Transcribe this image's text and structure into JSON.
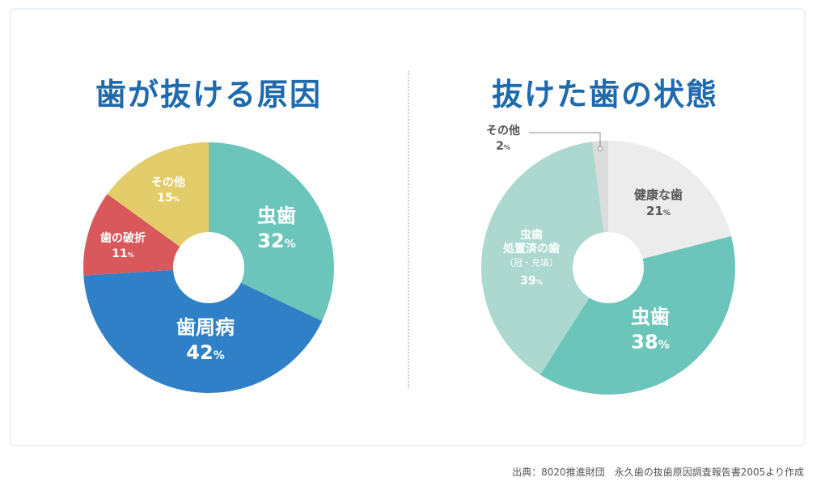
{
  "source": "出典：8020推進財団　永久歯の抜歯原因調査報告書2005より作成",
  "chart_data": [
    {
      "type": "pie",
      "title": "歯が抜ける原因",
      "slices": [
        {
          "label": "虫歯",
          "value": 32,
          "display": "32",
          "unit": "%",
          "color": "#6cc5bb",
          "text_color": "#ffffff"
        },
        {
          "label": "歯周病",
          "value": 42,
          "display": "42",
          "unit": "%",
          "color": "#2f80c6",
          "text_color": "#ffffff"
        },
        {
          "label": "歯の破折",
          "value": 11,
          "display": "11",
          "unit": "%",
          "color": "#d9585b",
          "text_color": "#ffffff"
        },
        {
          "label": "その他",
          "value": 15,
          "display": "15",
          "unit": "%",
          "color": "#e3cd6a",
          "text_color": "#ffffff"
        }
      ]
    },
    {
      "type": "pie",
      "title": "抜けた歯の状態",
      "slices": [
        {
          "label": "健康な歯",
          "value": 21,
          "display": "21",
          "unit": "%",
          "color": "#ececec",
          "text_color": "#555555"
        },
        {
          "label": "虫歯",
          "value": 38,
          "display": "38",
          "unit": "%",
          "color": "#6cc5bb",
          "text_color": "#ffffff"
        },
        {
          "label": "虫歯\n処置済の歯\n（冠・充填）",
          "value": 39,
          "display": "39",
          "unit": "%",
          "color": "#acd8cf",
          "text_color": "#ffffff"
        },
        {
          "label": "その他",
          "value": 2,
          "display": "2",
          "unit": "%",
          "color": "#dcdcdc",
          "text_color": "#555555"
        }
      ]
    }
  ]
}
